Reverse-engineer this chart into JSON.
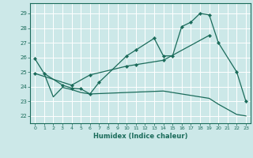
{
  "xlabel": "Humidex (Indice chaleur)",
  "bg_color": "#cce8e8",
  "grid_color": "#ffffff",
  "line_color": "#1a6b5a",
  "xlim": [
    -0.5,
    23.5
  ],
  "ylim": [
    21.5,
    29.7
  ],
  "xticks": [
    0,
    1,
    2,
    3,
    4,
    5,
    6,
    7,
    8,
    9,
    10,
    11,
    12,
    13,
    14,
    15,
    16,
    17,
    18,
    19,
    20,
    21,
    22,
    23
  ],
  "yticks": [
    22,
    23,
    24,
    25,
    26,
    27,
    28,
    29
  ],
  "line1_x": [
    0,
    1,
    3,
    4,
    5,
    6,
    7,
    10,
    11,
    13,
    14,
    15,
    16,
    17,
    18,
    19,
    20,
    22,
    23
  ],
  "line1_y": [
    25.9,
    24.9,
    24.1,
    23.9,
    23.85,
    23.5,
    24.3,
    26.1,
    26.5,
    27.3,
    26.1,
    26.1,
    28.1,
    28.4,
    29.0,
    28.9,
    27.0,
    25.0,
    23.0
  ],
  "line2_x": [
    0,
    4,
    6,
    10,
    11,
    14,
    19
  ],
  "line2_y": [
    24.9,
    24.1,
    24.8,
    25.4,
    25.5,
    25.8,
    27.5
  ],
  "line3_x": [
    1,
    2,
    3,
    4,
    5,
    6,
    14,
    19,
    20,
    22,
    23
  ],
  "line3_y": [
    24.9,
    23.3,
    23.95,
    23.8,
    23.6,
    23.5,
    23.7,
    23.2,
    22.8,
    22.1,
    22.0
  ]
}
